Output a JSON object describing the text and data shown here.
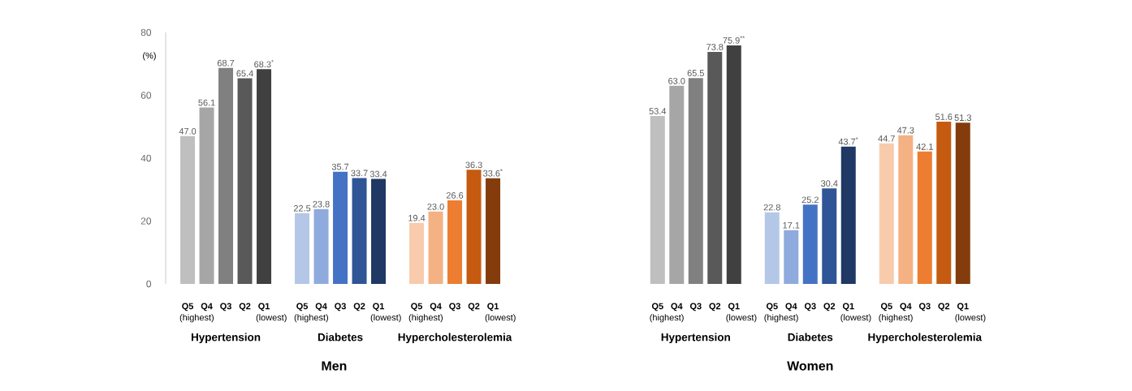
{
  "chart_data": [
    {
      "type": "bar",
      "xlabel": "Men",
      "ylabel": "(%)",
      "categories": [
        "**Q5** (highest)",
        "**Q4**",
        "**Q3**",
        "**Q2**",
        "**Q1** (lowest)",
        null,
        "**Q5** (highest)",
        "**Q4**",
        "**Q3**",
        "**Q2**",
        "**Q1** (lowest)",
        null,
        "**Q5** (highest)",
        "**Q4**",
        "**Q3**",
        "**Q2**",
        "**Q1** (lowest)"
      ],
      "series": [
        {
          "colors": [
            "#bfbfbf",
            "#a6a6a6",
            "#808080",
            "#595959",
            "#404040",
            null,
            null,
            null,
            null,
            null,
            null,
            null,
            null,
            null,
            null,
            null,
            null
          ],
          "values": [
            47.0,
            56.1,
            68.7,
            65.4,
            68.3,
            null,
            null,
            null,
            null,
            null,
            null,
            null,
            null,
            null,
            null,
            null,
            null
          ],
          "value_labels": [
            "47.0",
            "56.1",
            "68.7",
            "65.4",
            "68.3$^{*}$",
            null,
            null,
            null,
            null,
            null,
            null,
            null,
            null,
            null,
            null,
            null,
            null
          ]
        },
        {
          "colors": [
            null,
            null,
            null,
            null,
            null,
            null,
            "#b4c7e7",
            "#8faadc",
            "#4472c4",
            "#2f5597",
            "#203864",
            null,
            null,
            null,
            null,
            null,
            null
          ],
          "values": [
            null,
            null,
            null,
            null,
            null,
            null,
            22.5,
            23.8,
            35.7,
            33.7,
            33.4,
            null,
            null,
            null,
            null,
            null,
            null
          ],
          "value_labels": [
            null,
            null,
            null,
            null,
            null,
            null,
            "22.5",
            "23.8",
            "35.7",
            "33.7",
            "33.4",
            null,
            null,
            null,
            null,
            null,
            null
          ]
        },
        {
          "colors": [
            null,
            null,
            null,
            null,
            null,
            null,
            null,
            null,
            null,
            null,
            null,
            null,
            "#f8cbad",
            "#f4b183",
            "#ed7d31",
            "#c55a11",
            "#843c0c"
          ],
          "values": [
            null,
            null,
            null,
            null,
            null,
            null,
            null,
            null,
            null,
            null,
            null,
            null,
            19.4,
            23.0,
            26.6,
            36.3,
            33.6
          ],
          "value_labels": [
            null,
            null,
            null,
            null,
            null,
            null,
            null,
            null,
            null,
            null,
            null,
            null,
            "19.4",
            "23.0",
            "26.6",
            "36.3",
            "33.6$^{*}$"
          ]
        }
      ],
      "annotations": [
        "Hypertension",
        "Diabetes",
        "Hypercholesterolemia"
      ],
      "ylim": [
        0,
        80
      ],
      "yticks": [
        0,
        20,
        40,
        60,
        80
      ],
      "grid": false
    },
    {
      "type": "bar",
      "xlabel": "Women",
      "categories": [
        "**Q5** (highest)",
        "**Q4**",
        "**Q3**",
        "**Q2**",
        "**Q1** (lowest)",
        null,
        "**Q5** (highest)",
        "**Q4**",
        "**Q3**",
        "**Q2**",
        "**Q1** (lowest)",
        null,
        "**Q5** (highest)",
        "**Q4**",
        "**Q3**",
        "**Q2**",
        "**Q1** (lowest)"
      ],
      "series": [
        {
          "colors": [
            "#bfbfbf",
            "#a6a6a6",
            "#808080",
            "#595959",
            "#404040",
            null,
            null,
            null,
            null,
            null,
            null,
            null,
            null,
            null,
            null,
            null,
            null
          ],
          "values": [
            53.4,
            63.0,
            65.5,
            73.8,
            75.9,
            null,
            null,
            null,
            null,
            null,
            null,
            null,
            null,
            null,
            null,
            null,
            null
          ],
          "value_labels": [
            "53.4",
            "63.0",
            "65.5",
            "73.8",
            "75.9$^{**}$",
            null,
            null,
            null,
            null,
            null,
            null,
            null,
            null,
            null,
            null,
            null,
            null
          ]
        },
        {
          "colors": [
            null,
            null,
            null,
            null,
            null,
            null,
            "#b4c7e7",
            "#8faadc",
            "#4472c4",
            "#2f5597",
            "#203864",
            null,
            null,
            null,
            null,
            null,
            null
          ],
          "values": [
            null,
            null,
            null,
            null,
            null,
            null,
            22.8,
            17.1,
            25.2,
            30.4,
            43.7,
            null,
            null,
            null,
            null,
            null,
            null
          ],
          "value_labels": [
            null,
            null,
            null,
            null,
            null,
            null,
            "22.8",
            "17.1",
            "25.2",
            "30.4",
            "43.7$^{*}$",
            null,
            null,
            null,
            null,
            null,
            null
          ]
        },
        {
          "colors": [
            null,
            null,
            null,
            null,
            null,
            null,
            null,
            null,
            null,
            null,
            null,
            null,
            "#f8cbad",
            "#f4b183",
            "#ed7d31",
            "#c55a11",
            "#843c0c"
          ],
          "values": [
            null,
            null,
            null,
            null,
            null,
            null,
            null,
            null,
            null,
            null,
            null,
            null,
            44.7,
            47.3,
            42.1,
            51.6,
            51.3
          ],
          "value_labels": [
            null,
            null,
            null,
            null,
            null,
            null,
            null,
            null,
            null,
            null,
            null,
            null,
            "44.7",
            "47.3",
            "42.1",
            "51.6",
            "51.3"
          ]
        }
      ],
      "annotations": [
        "Hypertension",
        "Diabetes",
        "Hypercholesterolemia"
      ],
      "ylim": [
        0,
        80
      ],
      "yticks": [
        0,
        20,
        40,
        60,
        80
      ],
      "tick_labels": "x",
      "grid": false
    }
  ]
}
